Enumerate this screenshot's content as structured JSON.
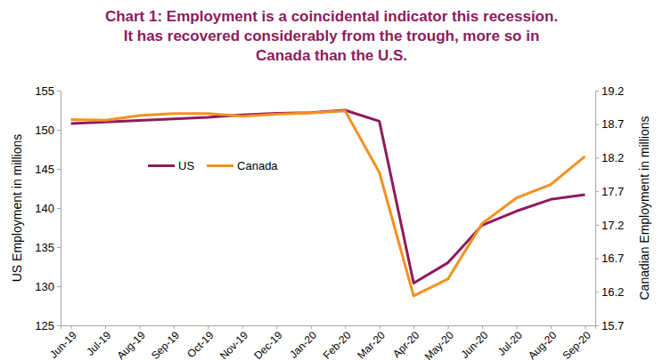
{
  "chart_data": {
    "type": "line",
    "title": "Chart 1: Employment is a coincidental indicator this recession.\nIt has recovered considerably from the trough, more so in\nCanada than the U.S.",
    "y_label": "US Employment in millions",
    "y2_label": "Canadian Employment in millions",
    "categories": [
      "Jun-19",
      "Jul-19",
      "Aug-19",
      "Sep-19",
      "Oct-19",
      "Nov-19",
      "Dec-19",
      "Jan-20",
      "Feb-20",
      "Mar-20",
      "Apr-20",
      "May-20",
      "Jun-20",
      "Jul-20",
      "Aug-20",
      "Sep-20"
    ],
    "series": [
      {
        "name": "US",
        "color": "#8e1b5e",
        "values": [
          150.8,
          151.0,
          151.2,
          151.4,
          151.6,
          151.9,
          152.1,
          152.2,
          152.5,
          151.1,
          130.4,
          133.0,
          137.8,
          139.6,
          141.1,
          141.7
        ]
      },
      {
        "name": "Canada",
        "color": "#f5901e",
        "axis": "y2",
        "values": [
          18.77,
          18.76,
          18.83,
          18.86,
          18.86,
          18.82,
          18.85,
          18.87,
          18.9,
          17.98,
          16.14,
          16.39,
          17.22,
          17.6,
          17.8,
          18.22
        ]
      }
    ],
    "ylim": [
      125,
      155
    ],
    "yticks": [
      125,
      130,
      135,
      140,
      145,
      150,
      155
    ],
    "y2lim": [
      15.7,
      19.2
    ],
    "y2ticks": [
      15.7,
      16.2,
      16.7,
      17.2,
      17.7,
      18.2,
      18.7,
      19.2
    ],
    "grid": false,
    "legend": "center left"
  }
}
